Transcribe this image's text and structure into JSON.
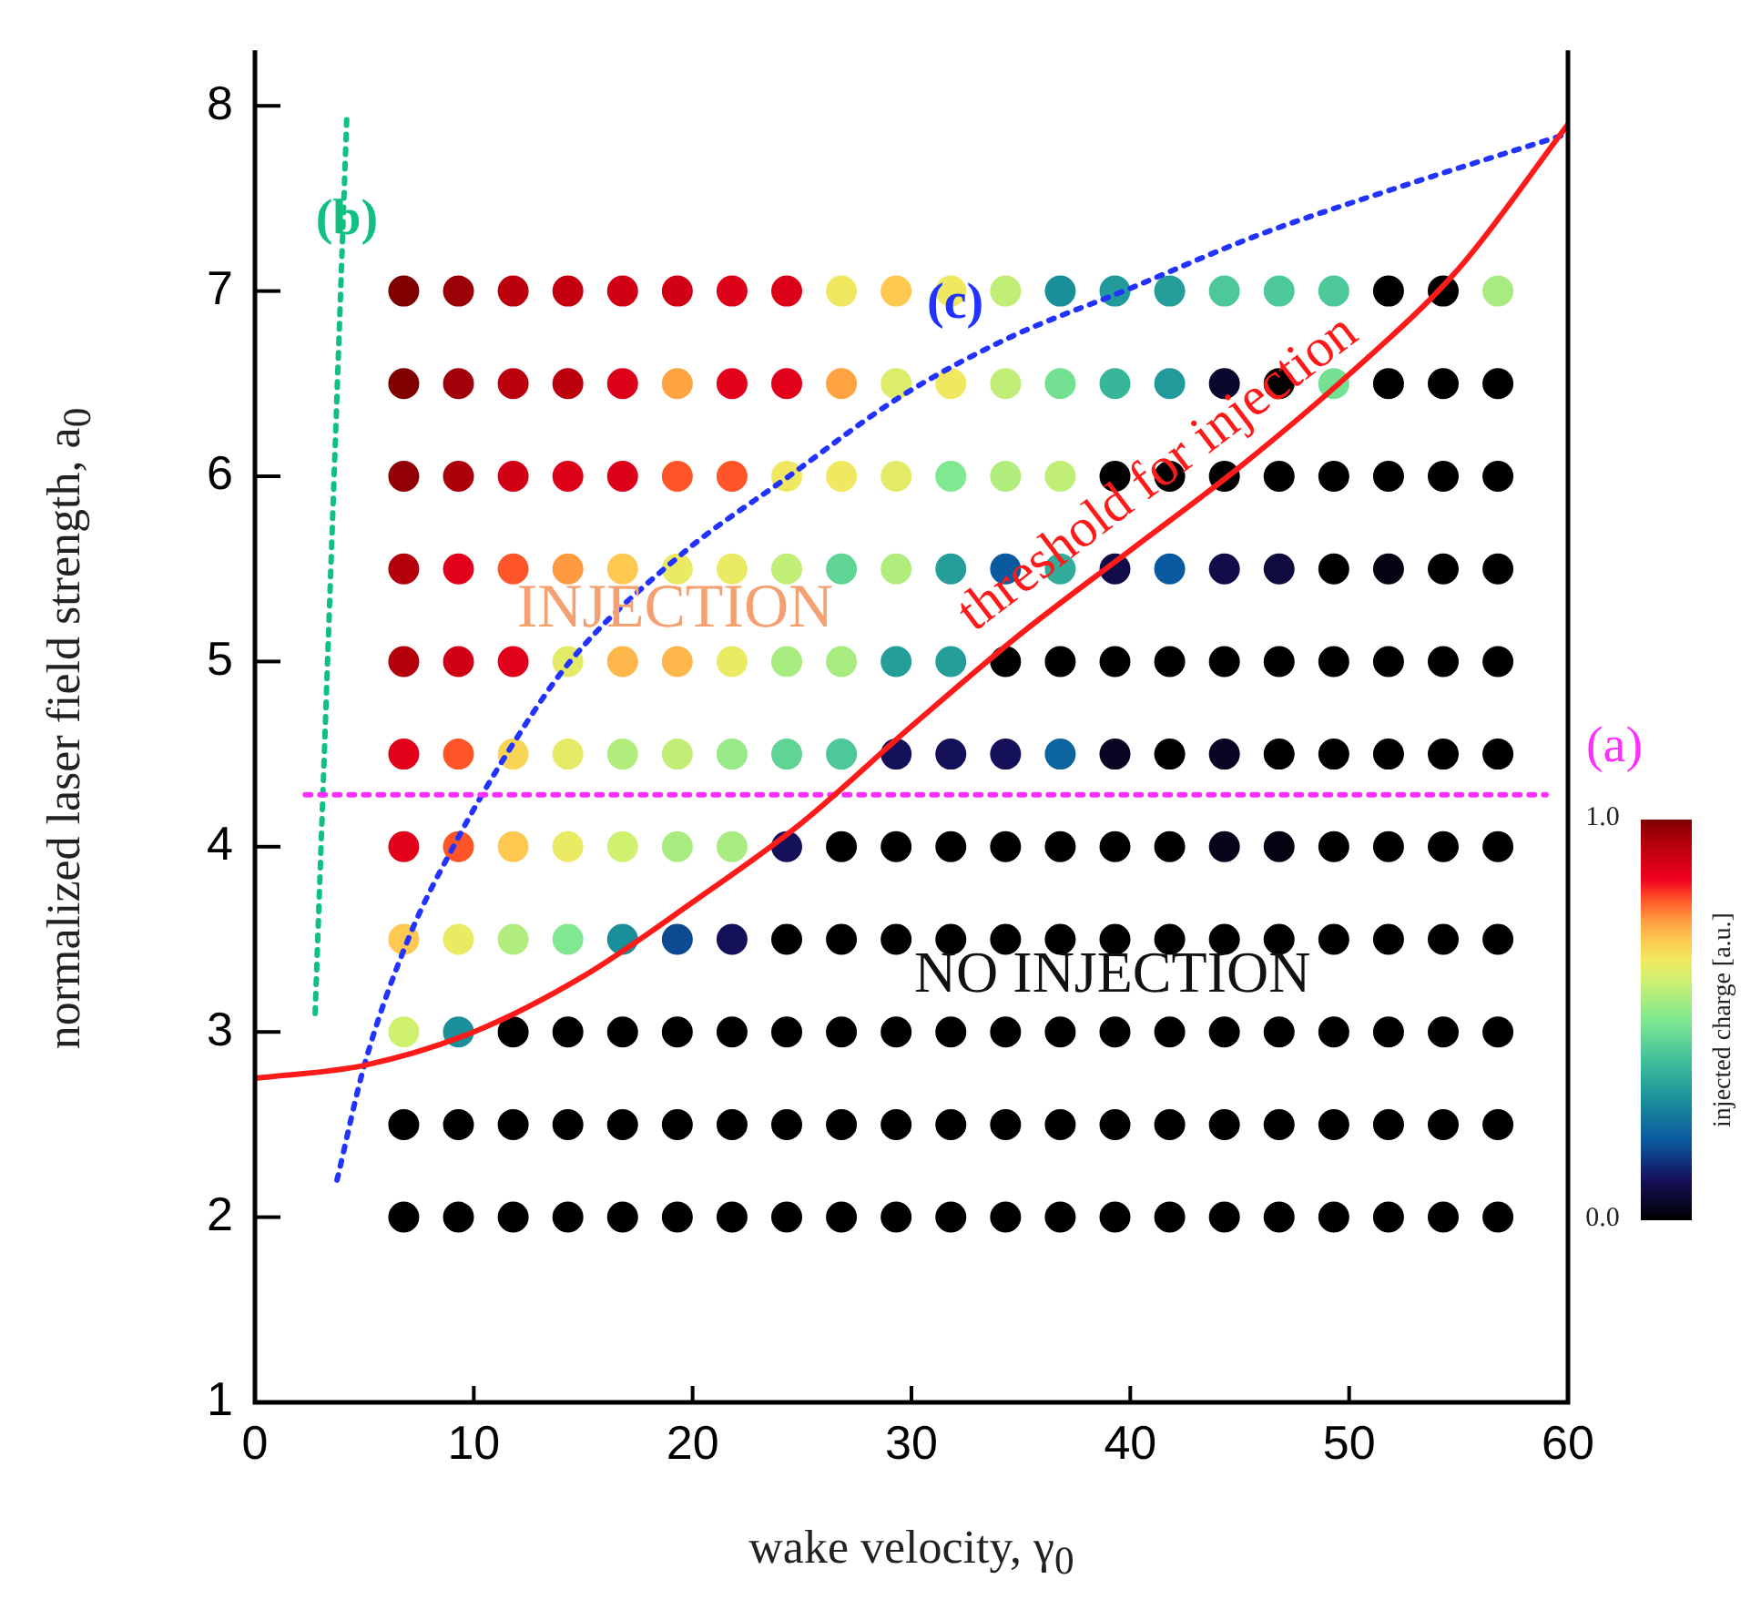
{
  "chart_data": {
    "type": "scatter",
    "xlabel": "wake velocity, γ$_{0}$",
    "ylabel": "normalized laser field strength, a$_{0}$",
    "clabel": "injected charge [a.u.]",
    "xlim": [
      0,
      60
    ],
    "xticks": [
      0,
      10,
      20,
      30,
      40,
      50,
      60
    ],
    "ylim": [
      1,
      8.3
    ],
    "yticks": [
      1,
      2,
      3,
      4,
      5,
      6,
      7,
      8
    ],
    "clim": [
      0,
      1
    ],
    "cticks": [
      {
        "value": 0,
        "label": "0.0"
      },
      {
        "value": 1,
        "label": "1.0"
      }
    ],
    "marker": "circle",
    "grid": false,
    "x": [
      6.8,
      9.3,
      11.8,
      14.3,
      16.8,
      19.3,
      21.8,
      24.3,
      26.8,
      29.3,
      31.8,
      34.3,
      36.8,
      39.3,
      41.8,
      44.3,
      46.8,
      49.3,
      51.8,
      54.3,
      56.8
    ],
    "series": [
      {
        "values": [
          7,
          7,
          7,
          7,
          7,
          7,
          7,
          7,
          7,
          7,
          7,
          7,
          7,
          7,
          7,
          7,
          7,
          7,
          7,
          7,
          7
        ],
        "cvalues": [
          1.0,
          0.97,
          0.93,
          0.92,
          0.9,
          0.9,
          0.88,
          0.88,
          0.65,
          0.7,
          0.65,
          0.58,
          0.3,
          0.32,
          0.33,
          0.42,
          0.42,
          0.42,
          0,
          0,
          0.55
        ],
        "colors": [
          "#800000",
          "#9a0006",
          "#bc000e",
          "#c40010",
          "#d10015",
          "#d10015",
          "#dd0019",
          "#dd0019",
          "#f0e860",
          "#ffc850",
          "#f0e860",
          "#c0ee76",
          "#1a8f9a",
          "#22999a",
          "#259e9a",
          "#4dc898",
          "#4dc898",
          "#4dc898",
          "#000000",
          "#000000",
          "#a8ec80"
        ]
      },
      {
        "values": [
          6.5,
          6.5,
          6.5,
          6.5,
          6.5,
          6.5,
          6.5,
          6.5,
          6.5,
          6.5,
          6.5,
          6.5,
          6.5,
          6.5,
          6.5,
          6.5,
          6.5,
          6.5,
          6.5,
          6.5,
          6.5
        ],
        "cvalues": [
          1.0,
          0.96,
          0.93,
          0.93,
          0.88,
          0.74,
          0.87,
          0.87,
          0.74,
          0.62,
          0.65,
          0.58,
          0.48,
          0.38,
          0.32,
          0.05,
          0,
          0.48,
          0,
          0,
          0
        ],
        "colors": [
          "#800000",
          "#a20008",
          "#bc000e",
          "#bc000e",
          "#dd0019",
          "#ffa343",
          "#e3001b",
          "#e3001b",
          "#ffa343",
          "#dded6a",
          "#f0e860",
          "#c0ee76",
          "#73e092",
          "#38b69a",
          "#22999a",
          "#0b082d",
          "#000000",
          "#73e092",
          "#000000",
          "#000000",
          "#000000"
        ]
      },
      {
        "values": [
          6,
          6,
          6,
          6,
          6,
          6,
          6,
          6,
          6,
          6,
          6,
          6,
          6,
          6,
          6,
          6,
          6,
          6,
          6,
          6,
          6
        ],
        "cvalues": [
          0.98,
          0.95,
          0.9,
          0.88,
          0.88,
          0.8,
          0.8,
          0.65,
          0.65,
          0.63,
          0.5,
          0.56,
          0.58,
          0,
          0,
          0,
          0,
          0,
          0,
          0,
          0
        ],
        "colors": [
          "#910004",
          "#ae000a",
          "#d10015",
          "#dd0019",
          "#dd0019",
          "#ff5528",
          "#ff5528",
          "#f0e860",
          "#f0e860",
          "#e3eb66",
          "#80e890",
          "#b0ed7d",
          "#c0ee76",
          "#000000",
          "#000000",
          "#000000",
          "#000000",
          "#000000",
          "#000000",
          "#000000",
          "#000000"
        ]
      },
      {
        "values": [
          5.5,
          5.5,
          5.5,
          5.5,
          5.5,
          5.5,
          5.5,
          5.5,
          5.5,
          5.5,
          5.5,
          5.5,
          5.5,
          5.5,
          5.5,
          5.5,
          5.5,
          5.5,
          5.5,
          5.5,
          5.5
        ],
        "cvalues": [
          0.94,
          0.87,
          0.8,
          0.75,
          0.7,
          0.64,
          0.64,
          0.58,
          0.45,
          0.56,
          0.33,
          0.2,
          0.36,
          0.08,
          0.2,
          0.08,
          0.07,
          0,
          0.02,
          0,
          0
        ],
        "colors": [
          "#b5000c",
          "#e3001b",
          "#ff5528",
          "#ff9a40",
          "#ffc850",
          "#eaea63",
          "#eaea63",
          "#c0ee76",
          "#60d495",
          "#b0ed7d",
          "#259e9a",
          "#0a5aa0",
          "#31ac9a",
          "#110d48",
          "#0a5aa0",
          "#110d48",
          "#0f0b3f",
          "#000000",
          "#040312",
          "#000000",
          "#000000"
        ]
      },
      {
        "values": [
          5,
          5,
          5,
          5,
          5,
          5,
          5,
          5,
          5,
          5,
          5,
          5,
          5,
          5,
          5,
          5,
          5,
          5,
          5,
          5,
          5
        ],
        "cvalues": [
          0.94,
          0.9,
          0.87,
          0.63,
          0.72,
          0.72,
          0.64,
          0.55,
          0.55,
          0.33,
          0.33,
          0,
          0,
          0,
          0,
          0,
          0,
          0,
          0,
          0,
          0
        ],
        "colors": [
          "#b5000c",
          "#d10015",
          "#e3001b",
          "#e3eb66",
          "#ffb64a",
          "#ffb64a",
          "#eaea63",
          "#a8ec80",
          "#a8ec80",
          "#259e9a",
          "#259e9a",
          "#000000",
          "#000000",
          "#000000",
          "#000000",
          "#000000",
          "#000000",
          "#000000",
          "#000000",
          "#000000",
          "#000000"
        ]
      },
      {
        "values": [
          4.5,
          4.5,
          4.5,
          4.5,
          4.5,
          4.5,
          4.5,
          4.5,
          4.5,
          4.5,
          4.5,
          4.5,
          4.5,
          4.5,
          4.5,
          4.5,
          4.5,
          4.5,
          4.5,
          4.5,
          4.5
        ],
        "cvalues": [
          0.87,
          0.8,
          0.68,
          0.63,
          0.56,
          0.58,
          0.53,
          0.45,
          0.42,
          0.1,
          0.1,
          0.1,
          0.22,
          0.04,
          0,
          0.04,
          0,
          0,
          0,
          0,
          0
        ],
        "colors": [
          "#e3001b",
          "#ff5528",
          "#f9d556",
          "#e3eb66",
          "#b0ed7d",
          "#c0ee76",
          "#98ea86",
          "#60d495",
          "#4dc898",
          "#15105a",
          "#15105a",
          "#15105a",
          "#0d659f",
          "#080624",
          "#000000",
          "#080624",
          "#000000",
          "#000000",
          "#000000",
          "#000000",
          "#000000"
        ]
      },
      {
        "values": [
          4,
          4,
          4,
          4,
          4,
          4,
          4,
          4,
          4,
          4,
          4,
          4,
          4,
          4,
          4,
          4,
          4,
          4,
          4,
          4,
          4
        ],
        "cvalues": [
          0.87,
          0.8,
          0.7,
          0.64,
          0.6,
          0.55,
          0.55,
          0.1,
          0,
          0,
          0,
          0,
          0,
          0,
          0,
          0.03,
          0.02,
          0,
          0,
          0,
          0
        ],
        "colors": [
          "#e3001b",
          "#ff5528",
          "#ffc850",
          "#eaea63",
          "#d0f070",
          "#a8ec80",
          "#a8ec80",
          "#15105a",
          "#000000",
          "#000000",
          "#000000",
          "#000000",
          "#000000",
          "#000000",
          "#000000",
          "#06051b",
          "#040312",
          "#000000",
          "#000000",
          "#000000",
          "#000000"
        ]
      },
      {
        "values": [
          3.5,
          3.5,
          3.5,
          3.5,
          3.5,
          3.5,
          3.5,
          3.5,
          3.5,
          3.5,
          3.5,
          3.5,
          3.5,
          3.5,
          3.5,
          3.5,
          3.5,
          3.5,
          3.5,
          3.5,
          3.5
        ],
        "cvalues": [
          0.7,
          0.64,
          0.56,
          0.5,
          0.3,
          0.18,
          0.1,
          0,
          0,
          0,
          0,
          0,
          0,
          0,
          0,
          0,
          0,
          0,
          0,
          0,
          0
        ],
        "colors": [
          "#ffc850",
          "#eaea63",
          "#b0ed7d",
          "#80e890",
          "#1a8f9a",
          "#0c4b92",
          "#15105a",
          "#000000",
          "#000000",
          "#000000",
          "#000000",
          "#000000",
          "#000000",
          "#000000",
          "#000000",
          "#000000",
          "#000000",
          "#000000",
          "#000000",
          "#000000",
          "#000000"
        ]
      },
      {
        "values": [
          3,
          3,
          3,
          3,
          3,
          3,
          3,
          3,
          3,
          3,
          3,
          3,
          3,
          3,
          3,
          3,
          3,
          3,
          3,
          3,
          3
        ],
        "cvalues": [
          0.6,
          0.3,
          0,
          0,
          0,
          0,
          0,
          0,
          0,
          0,
          0,
          0,
          0,
          0,
          0,
          0,
          0,
          0,
          0,
          0,
          0
        ],
        "colors": [
          "#d0f070",
          "#1a8f9a",
          "#000000",
          "#000000",
          "#000000",
          "#000000",
          "#000000",
          "#000000",
          "#000000",
          "#000000",
          "#000000",
          "#000000",
          "#000000",
          "#000000",
          "#000000",
          "#000000",
          "#000000",
          "#000000",
          "#000000",
          "#000000",
          "#000000"
        ]
      },
      {
        "values": [
          2.5,
          2.5,
          2.5,
          2.5,
          2.5,
          2.5,
          2.5,
          2.5,
          2.5,
          2.5,
          2.5,
          2.5,
          2.5,
          2.5,
          2.5,
          2.5,
          2.5,
          2.5,
          2.5,
          2.5,
          2.5
        ],
        "cvalues": [
          0,
          0,
          0,
          0,
          0,
          0,
          0,
          0,
          0,
          0,
          0,
          0,
          0,
          0,
          0,
          0,
          0,
          0,
          0,
          0,
          0
        ]
      },
      {
        "values": [
          2,
          2,
          2,
          2,
          2,
          2,
          2,
          2,
          2,
          2,
          2,
          2,
          2,
          2,
          2,
          2,
          2,
          2,
          2,
          2,
          2
        ],
        "cvalues": [
          0,
          0,
          0,
          0,
          0,
          0,
          0,
          0,
          0,
          0,
          0,
          0,
          0,
          0,
          0,
          0,
          0,
          0,
          0,
          0,
          0
        ]
      },
      {
        "type": "line",
        "name": "threshold for injection",
        "color": "#ff1a1a",
        "line_style": "solid",
        "marker": "none",
        "x": [
          0,
          5,
          10,
          15,
          20,
          25,
          30,
          35,
          40,
          45,
          50,
          55,
          60
        ],
        "values": [
          2.75,
          2.82,
          3.0,
          3.3,
          3.7,
          4.13,
          4.65,
          5.15,
          5.6,
          6.05,
          6.55,
          7.12,
          7.9
        ]
      },
      {
        "type": "line",
        "name": "(a)",
        "color": "#ff30ff",
        "line_style": "dotted",
        "marker": "none",
        "x": [
          2.3,
          59
        ],
        "values": [
          4.28,
          4.28
        ]
      },
      {
        "type": "line",
        "name": "(b)",
        "color": "#10c080",
        "line_style": "dotted",
        "marker": "none",
        "x": [
          2.75,
          4.2
        ],
        "values": [
          3.1,
          7.95
        ]
      },
      {
        "type": "line",
        "name": "(c)",
        "color": "#2233ff",
        "line_style": "dotted",
        "marker": "none",
        "x": [
          3.75,
          5,
          7,
          9.2,
          11.5,
          14.4,
          19.4,
          24.4,
          29.5,
          34.5,
          39.7,
          45.8,
          52,
          60
        ],
        "values": [
          2.2,
          2.82,
          3.5,
          4.03,
          4.5,
          5.0,
          5.57,
          6.0,
          6.43,
          6.75,
          7.0,
          7.3,
          7.55,
          7.85
        ]
      }
    ],
    "annotations": [
      "INJECTION",
      "NO INJECTION"
    ]
  }
}
